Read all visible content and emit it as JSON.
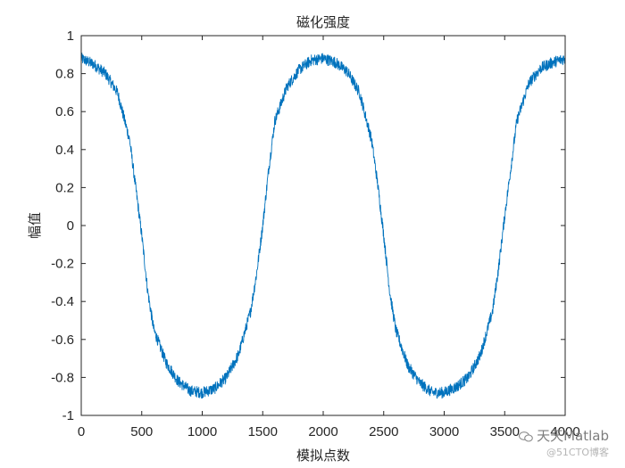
{
  "chart_data": {
    "type": "line",
    "title": "磁化强度",
    "xlabel": "模拟点数",
    "ylabel": "幅值",
    "xlim": [
      0,
      4000
    ],
    "ylim": [
      -1,
      1
    ],
    "xticks": [
      0,
      500,
      1000,
      1500,
      2000,
      2500,
      3000,
      3500,
      4000
    ],
    "xtick_labels": [
      "0",
      "500",
      "1000",
      "1500",
      "2000",
      "2500",
      "3000",
      "3500",
      "4000"
    ],
    "yticks": [
      1,
      0.8,
      0.6,
      0.4,
      0.2,
      0,
      -0.2,
      -0.4,
      -0.6,
      -0.8,
      -1
    ],
    "ytick_labels": [
      "1",
      "0.8",
      "0.6",
      "0.4",
      "0.2",
      "0",
      "-0.2",
      "-0.4",
      "-0.6",
      "-0.8",
      "-1"
    ],
    "grid": false,
    "series": [
      {
        "color": "#0072BD",
        "x": [
          0,
          100,
          200,
          300,
          400,
          450,
          500,
          550,
          600,
          700,
          800,
          900,
          1000,
          1100,
          1200,
          1300,
          1400,
          1450,
          1500,
          1550,
          1600,
          1700,
          1800,
          1900,
          2000,
          2100,
          2200,
          2300,
          2400,
          2450,
          2500,
          2550,
          2600,
          2700,
          2800,
          2900,
          3000,
          3100,
          3200,
          3300,
          3400,
          3450,
          3500,
          3550,
          3600,
          3700,
          3800,
          3900,
          4000
        ],
        "y": [
          0.88,
          0.85,
          0.8,
          0.7,
          0.45,
          0.2,
          -0.05,
          -0.35,
          -0.55,
          -0.72,
          -0.82,
          -0.87,
          -0.88,
          -0.86,
          -0.8,
          -0.68,
          -0.45,
          -0.25,
          0.0,
          0.3,
          0.55,
          0.73,
          0.82,
          0.87,
          0.88,
          0.86,
          0.81,
          0.7,
          0.45,
          0.22,
          -0.05,
          -0.35,
          -0.55,
          -0.74,
          -0.83,
          -0.88,
          -0.88,
          -0.85,
          -0.8,
          -0.68,
          -0.45,
          -0.22,
          0.05,
          0.3,
          0.55,
          0.75,
          0.83,
          0.86,
          0.88
        ],
        "noise_amplitude": 0.03
      }
    ]
  },
  "watermark": {
    "line1": "天天Matlab",
    "line2": "@51CTO博客",
    "icon": "wechat-icon"
  }
}
